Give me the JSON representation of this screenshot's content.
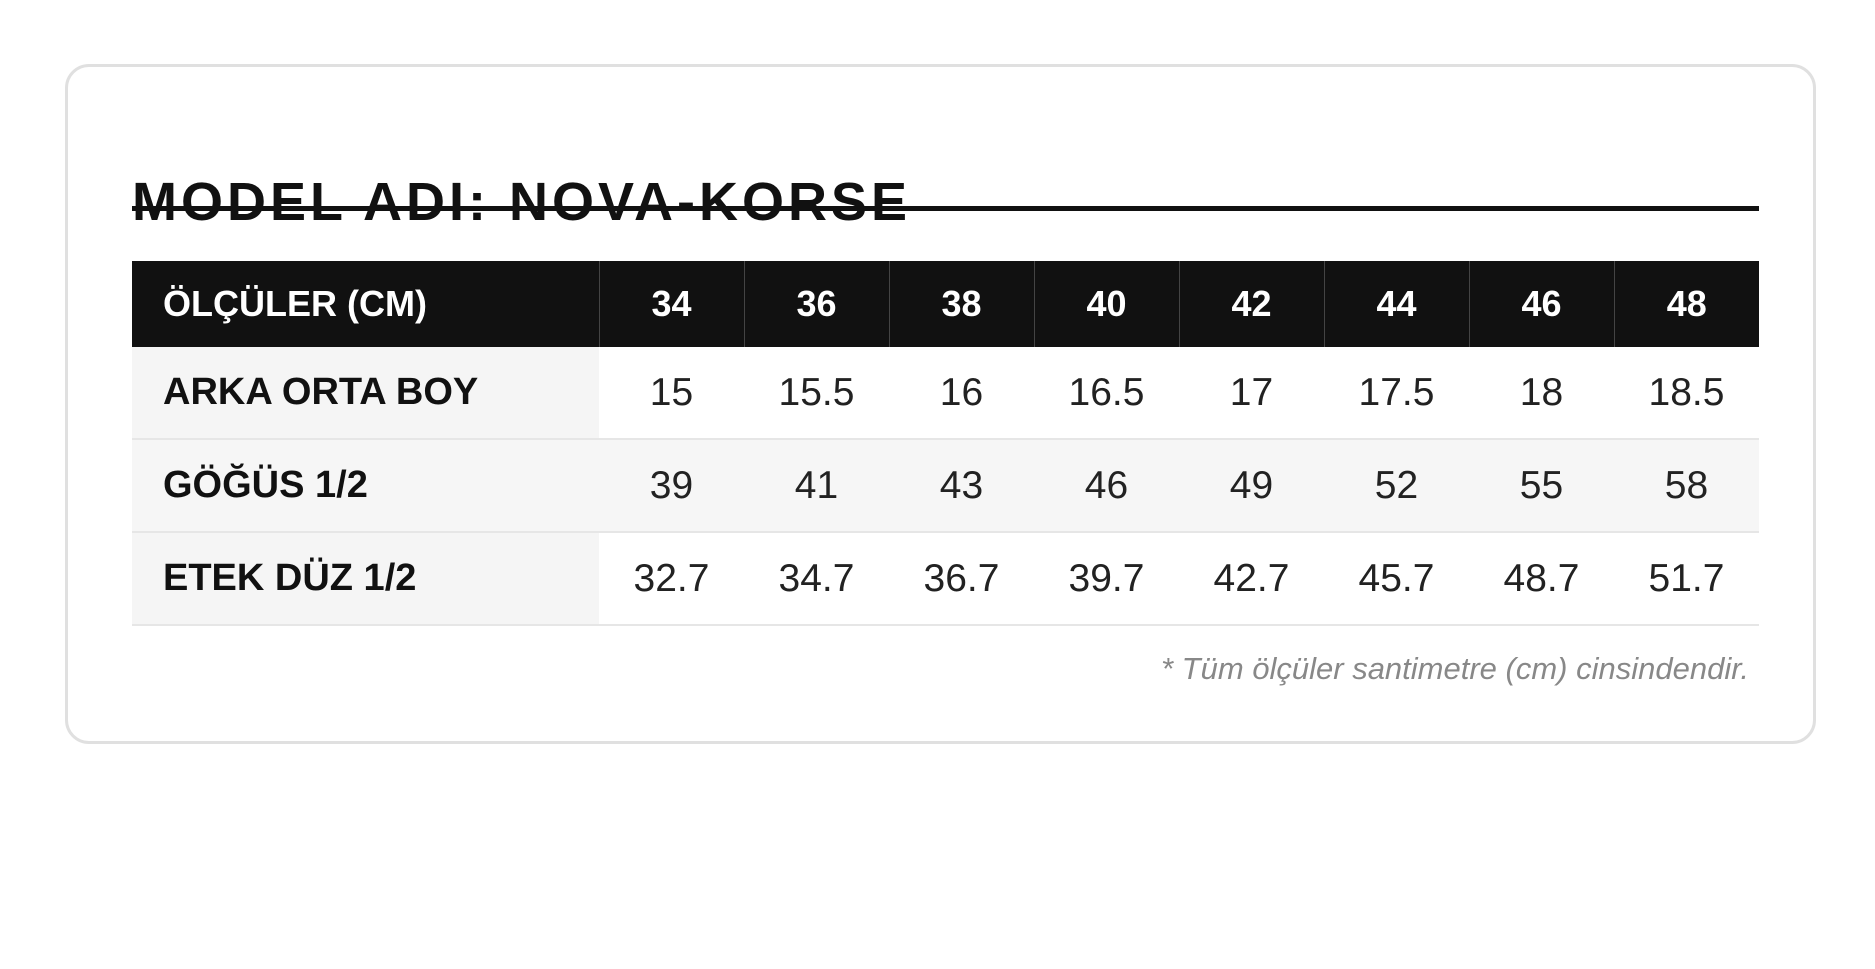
{
  "header": {
    "title": "MODEL ADI: NOVA-KORSE"
  },
  "table": {
    "columns": [
      "ÖLÇÜLER (CM)",
      34,
      36,
      38,
      40,
      42,
      44,
      46,
      48
    ],
    "rows": [
      [
        "ARKA ORTA BOY",
        15,
        15.5,
        16,
        16.5,
        17,
        17.5,
        18,
        18.5
      ],
      [
        "GÖĞÜS 1/2",
        39,
        41,
        43,
        46,
        49,
        52,
        55,
        58
      ],
      [
        "ETEK DÜZ 1/2",
        32.7,
        34.7,
        36.7,
        39.7,
        42.7,
        45.7,
        48.7,
        51.7
      ]
    ]
  },
  "footnote": "* Tüm ölçüler santimetre (cm) cinsindendir."
}
